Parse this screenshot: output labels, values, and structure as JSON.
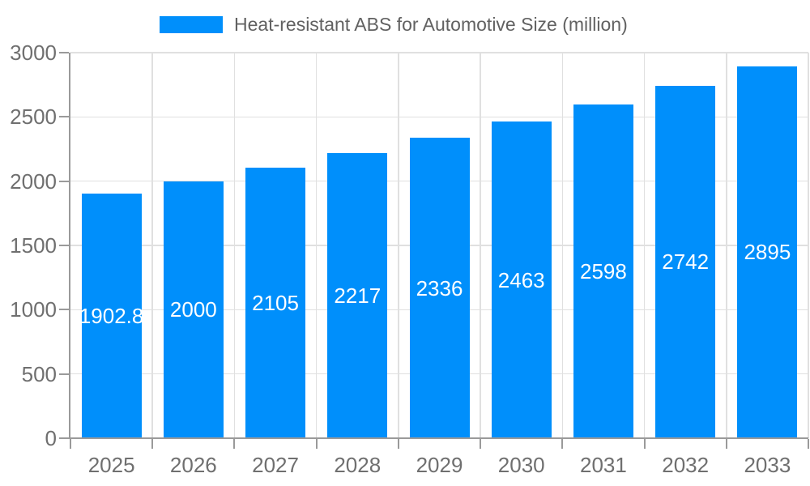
{
  "legend": {
    "label": "Heat-resistant ABS for Automotive Size (million)",
    "position": "top"
  },
  "chart_data": {
    "type": "bar",
    "title": "",
    "series_name": "Heat-resistant ABS for Automotive Size (million)",
    "categories": [
      "2025",
      "2026",
      "2027",
      "2028",
      "2029",
      "2030",
      "2031",
      "2032",
      "2033"
    ],
    "values": [
      1902.8,
      2000,
      2105,
      2217,
      2336,
      2463,
      2598,
      2742,
      2895
    ],
    "value_labels": [
      "1902.8",
      "2000",
      "2105",
      "2217",
      "2336",
      "2463",
      "2598",
      "2742",
      "2895"
    ],
    "xlabel": "",
    "ylabel": "",
    "ylim": [
      0,
      3000
    ],
    "yticks": [
      0,
      500,
      1000,
      1500,
      2000,
      2500,
      3000
    ],
    "grid": true,
    "legend_position": "top",
    "bar_color": "#008ffb",
    "value_label_color": "#ffffff"
  },
  "colors": {
    "bar": "#008ffb",
    "grid_line": "#e0e0e0",
    "axis_line": "#9a9a9a",
    "tick_label": "#6f6f6f",
    "legend_text": "#616161",
    "value_label": "#ffffff",
    "background": "#ffffff"
  }
}
